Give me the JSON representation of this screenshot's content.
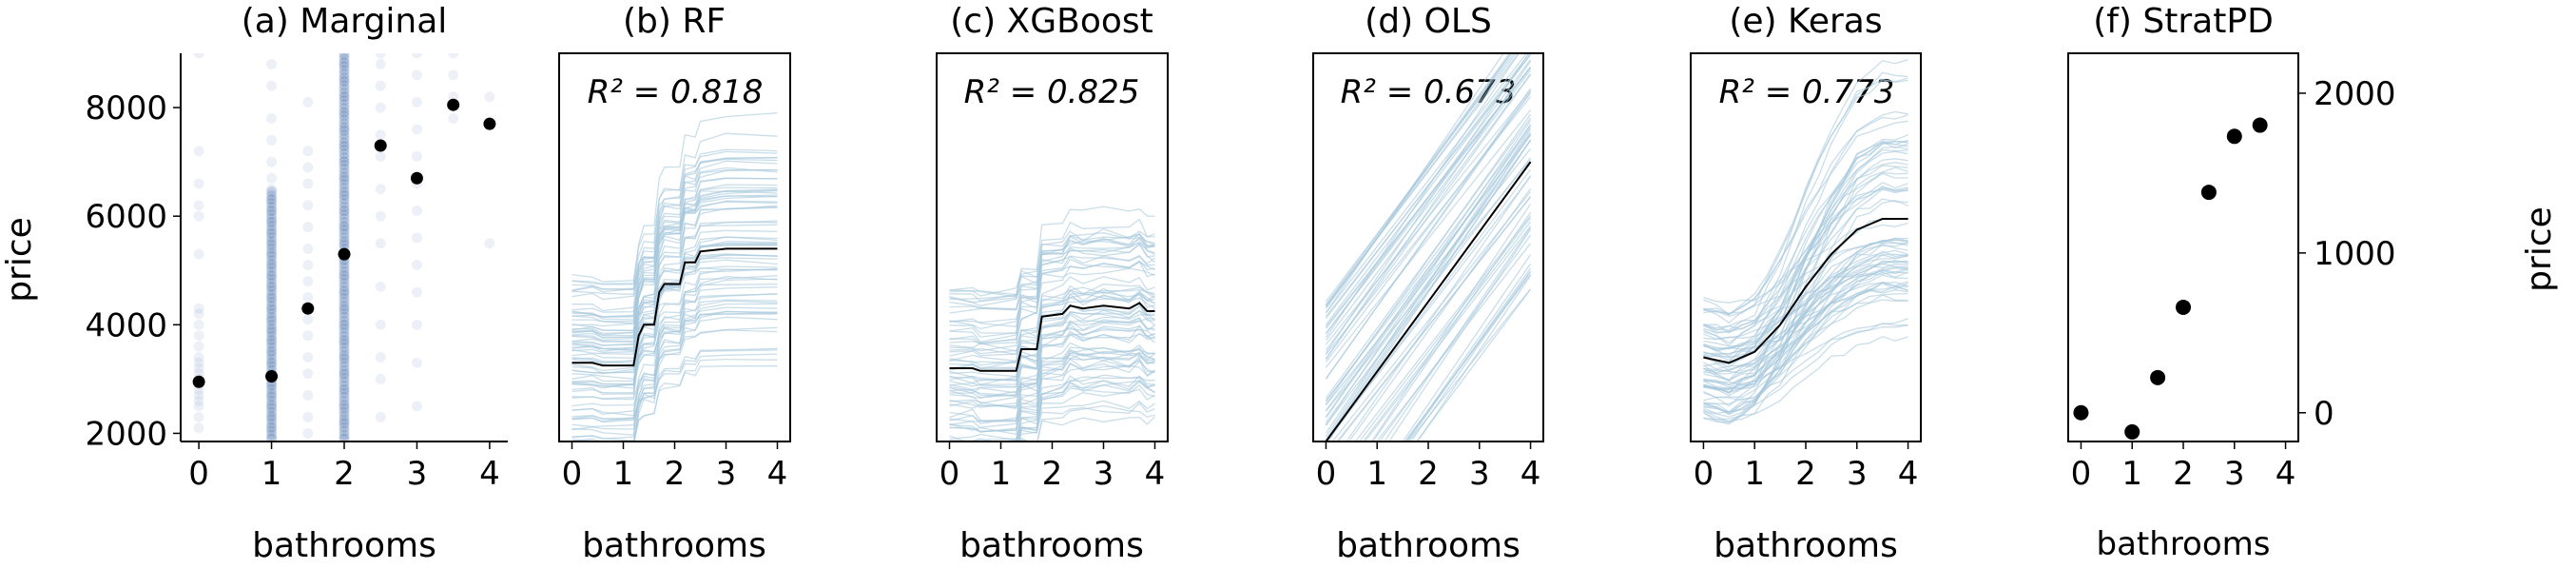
{
  "colors": {
    "scatter": "#4c72b0",
    "ice": "#a6c8dc",
    "pdp": "#000000",
    "dot": "#000000"
  },
  "chart_data": [
    {
      "id": "a",
      "type": "scatter",
      "title": "(a) Marginal",
      "xlabel": "bathrooms",
      "ylabel": "price",
      "xlim": [
        -0.25,
        4.25
      ],
      "ylim": [
        1850,
        9000
      ],
      "xticks": [
        "0",
        "1",
        "2",
        "3",
        "4"
      ],
      "yticks": [
        "2000",
        "4000",
        "6000",
        "8000"
      ],
      "scatter_groups": [
        {
          "x": 0,
          "y": [
            2100,
            2300,
            2500,
            2600,
            2700,
            2800,
            2900,
            3000,
            3100,
            3200,
            3300,
            3400,
            3600,
            3800,
            4000,
            4200,
            4300,
            5300,
            6000,
            6200,
            6600,
            7200,
            9000
          ]
        },
        {
          "x": 1,
          "y": [
            1900,
            2100,
            2300,
            2500,
            2700,
            2900,
            3100,
            3300,
            3500,
            3700,
            3900,
            4100,
            4300,
            4500,
            4700,
            4900,
            5100,
            5300,
            5500,
            5700,
            5900,
            6100,
            6300,
            6500,
            6700,
            7000,
            7400,
            7800,
            8400,
            8800
          ]
        },
        {
          "x": 1.5,
          "y": [
            2000,
            2300,
            2700,
            3100,
            3400,
            3800,
            4100,
            4500,
            4800,
            5100,
            5400,
            5800,
            6200,
            6600,
            6900,
            7200,
            8100
          ]
        },
        {
          "x": 2,
          "y": [
            1900,
            2200,
            2500,
            2800,
            3100,
            3400,
            3700,
            4000,
            4300,
            4600,
            4900,
            5200,
            5500,
            5800,
            6100,
            6400,
            6700,
            7000,
            7300,
            7600,
            7900,
            8200,
            8500,
            8800,
            9000
          ]
        },
        {
          "x": 2.5,
          "y": [
            2300,
            3000,
            3400,
            4000,
            4700,
            5500,
            6000,
            6500,
            7100,
            7500,
            8000,
            8400,
            8800,
            9000
          ]
        },
        {
          "x": 3,
          "y": [
            2500,
            3300,
            4000,
            4600,
            5100,
            5600,
            6100,
            6600,
            7100,
            7600,
            8100,
            8600,
            9000
          ]
        },
        {
          "x": 3.5,
          "y": [
            7800,
            8200,
            8600,
            9000
          ]
        },
        {
          "x": 4,
          "y": [
            5500,
            8200
          ]
        }
      ],
      "means": {
        "x": [
          0,
          1,
          1.5,
          2,
          2.5,
          3,
          3.5,
          4
        ],
        "y": [
          2950,
          3050,
          4300,
          5300,
          7300,
          6700,
          8050,
          7700
        ]
      }
    },
    {
      "id": "b",
      "type": "line",
      "title": "(b) RF",
      "annotation": "R² = 0.818",
      "xlabel": "bathrooms",
      "xlim": [
        -0.25,
        4.25
      ],
      "ylim": [
        1850,
        9000
      ],
      "xticks": [
        "0",
        "1",
        "2",
        "3",
        "4"
      ],
      "pdp": {
        "x": [
          0,
          0.4,
          0.6,
          1.2,
          1.3,
          1.4,
          1.6,
          1.7,
          1.8,
          2.1,
          2.2,
          2.4,
          2.5,
          3,
          4
        ],
        "y": [
          3300,
          3300,
          3250,
          3250,
          3800,
          4000,
          4000,
          4600,
          4750,
          4750,
          5150,
          5150,
          5350,
          5400,
          5400
        ]
      }
    },
    {
      "id": "c",
      "type": "line",
      "title": "(c) XGBoost",
      "annotation": "R² = 0.825",
      "xlabel": "bathrooms",
      "xlim": [
        -0.25,
        4.25
      ],
      "ylim": [
        1850,
        9000
      ],
      "xticks": [
        "0",
        "1",
        "2",
        "3",
        "4"
      ],
      "pdp": {
        "x": [
          0,
          0.45,
          0.6,
          1.3,
          1.4,
          1.7,
          1.8,
          2.2,
          2.35,
          2.6,
          3,
          3.5,
          3.7,
          3.85,
          4
        ],
        "y": [
          3200,
          3200,
          3150,
          3150,
          3550,
          3550,
          4150,
          4200,
          4350,
          4300,
          4350,
          4300,
          4400,
          4250,
          4250
        ]
      }
    },
    {
      "id": "d",
      "type": "line",
      "title": "(d) OLS",
      "annotation": "R² = 0.673",
      "xlabel": "bathrooms",
      "xlim": [
        -0.25,
        4.25
      ],
      "ylim": [
        1850,
        9000
      ],
      "xticks": [
        "0",
        "1",
        "2",
        "3",
        "4"
      ],
      "pdp": {
        "x": [
          0,
          4
        ],
        "y": [
          1850,
          7000
        ]
      }
    },
    {
      "id": "e",
      "type": "line",
      "title": "(e) Keras",
      "annotation": "R² = 0.773",
      "xlabel": "bathrooms",
      "xlim": [
        -0.25,
        4.25
      ],
      "ylim": [
        1850,
        9000
      ],
      "xticks": [
        "0",
        "1",
        "2",
        "3",
        "4"
      ],
      "pdp": {
        "x": [
          0,
          0.5,
          1,
          1.5,
          2,
          2.5,
          3,
          3.5,
          4
        ],
        "y": [
          3400,
          3300,
          3500,
          4000,
          4700,
          5300,
          5750,
          5950,
          5950
        ]
      }
    },
    {
      "id": "f",
      "type": "scatter",
      "title": "(f) StratPD",
      "xlabel": "bathrooms",
      "ylabel": "price",
      "ylabel_side": "right",
      "xlim": [
        -0.25,
        4.25
      ],
      "ylim": [
        -180,
        2250
      ],
      "xticks": [
        "0",
        "1",
        "2",
        "3",
        "4"
      ],
      "yticks": [
        "0",
        "1000",
        "2000"
      ],
      "points": {
        "x": [
          0,
          1,
          1.5,
          2,
          2.5,
          3,
          3.5
        ],
        "y": [
          0,
          -120,
          220,
          660,
          1380,
          1730,
          1800
        ]
      }
    }
  ]
}
